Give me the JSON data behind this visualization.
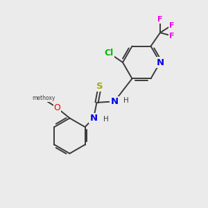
{
  "bg_color": "#ebebeb",
  "bond_color": "#3a3a3a",
  "bond_width": 1.4,
  "atom_colors": {
    "N": "#0000ee",
    "S": "#aaaa00",
    "O": "#ee0000",
    "Cl": "#00bb00",
    "F": "#ee00ee",
    "C": "#3a3a3a",
    "H": "#3a3a3a"
  },
  "font_size": 8.5
}
